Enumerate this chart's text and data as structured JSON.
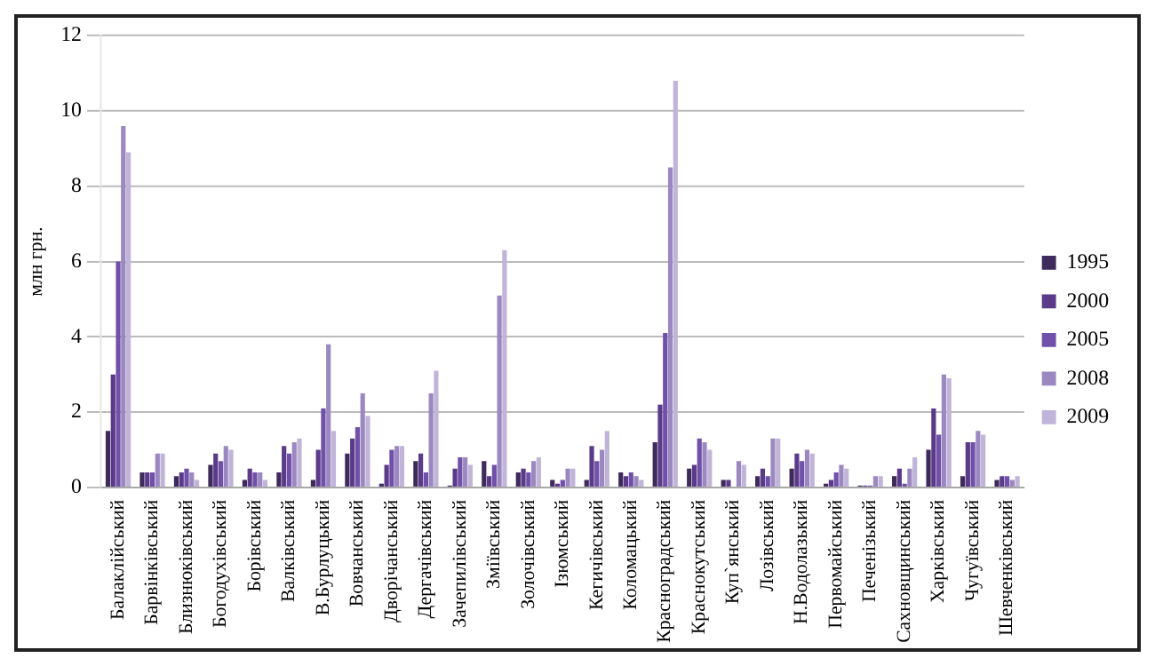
{
  "chart_data": {
    "type": "bar",
    "ylabel": "млн грн.",
    "categories": [
      "Балаклійський",
      "Барвінківський",
      "Близнюківський",
      "Богодухівський",
      "Борівський",
      "Валківський",
      "В.Бурлуцький",
      "Вовчанський",
      "Дворічанський",
      "Дергачівський",
      "Зачепилівський",
      "Зміївський",
      "Золочівський",
      "Ізюмський",
      "Кегичівський",
      "Коломацький",
      "Красноградський",
      "Краснокутський",
      "Куп`янський",
      "Лозівський",
      "Н.Водолазький",
      "Первомайський",
      "Печенізький",
      "Сахновщинський",
      "Харківський",
      "Чугуївський",
      "Шевченківський"
    ],
    "series": [
      {
        "name": "1995",
        "color": "#3f2a5c",
        "values": [
          1.5,
          0.4,
          0.3,
          0.6,
          0.2,
          0.4,
          0.2,
          0.9,
          0.1,
          0.7,
          0.05,
          0.7,
          0.4,
          0.2,
          0.2,
          0.4,
          1.2,
          0.5,
          0.2,
          0.3,
          0.5,
          0.1,
          0.05,
          0.3,
          1.0,
          0.3,
          0.2
        ]
      },
      {
        "name": "2000",
        "color": "#5c3a8a",
        "values": [
          3.0,
          0.4,
          0.4,
          0.9,
          0.5,
          1.1,
          1.0,
          1.3,
          0.6,
          0.9,
          0.5,
          0.3,
          0.5,
          0.1,
          1.1,
          0.3,
          2.2,
          0.6,
          0.2,
          0.5,
          0.9,
          0.2,
          0.05,
          0.5,
          2.1,
          1.2,
          0.3
        ]
      },
      {
        "name": "2005",
        "color": "#7050a8",
        "values": [
          6.0,
          0.4,
          0.5,
          0.7,
          0.4,
          0.9,
          2.1,
          1.6,
          1.0,
          0.4,
          0.8,
          0.6,
          0.4,
          0.2,
          0.7,
          0.4,
          4.1,
          1.3,
          0,
          0.3,
          0.7,
          0.4,
          0.05,
          0.1,
          1.4,
          1.2,
          0.3
        ]
      },
      {
        "name": "2008",
        "color": "#9c88c0",
        "values": [
          9.6,
          0.9,
          0.4,
          1.1,
          0.4,
          1.2,
          3.8,
          2.5,
          1.1,
          2.5,
          0.8,
          5.1,
          0.7,
          0.5,
          1.0,
          0.3,
          8.5,
          1.2,
          0.7,
          1.3,
          1.0,
          0.6,
          0.3,
          0.5,
          3.0,
          1.5,
          0.2
        ]
      },
      {
        "name": "2009",
        "color": "#c0b4d8",
        "values": [
          8.9,
          0.9,
          0.2,
          1.0,
          0.2,
          1.3,
          1.5,
          1.9,
          1.1,
          3.1,
          0.6,
          6.3,
          0.8,
          0.5,
          1.5,
          0.2,
          10.8,
          1.0,
          0.6,
          1.3,
          0.9,
          0.5,
          0.3,
          0.8,
          2.9,
          1.4,
          0.3
        ]
      }
    ],
    "ylim": [
      0,
      12
    ],
    "yticks": [
      0,
      2,
      4,
      6,
      8,
      10,
      12
    ],
    "grid": "y",
    "legend": "right"
  }
}
